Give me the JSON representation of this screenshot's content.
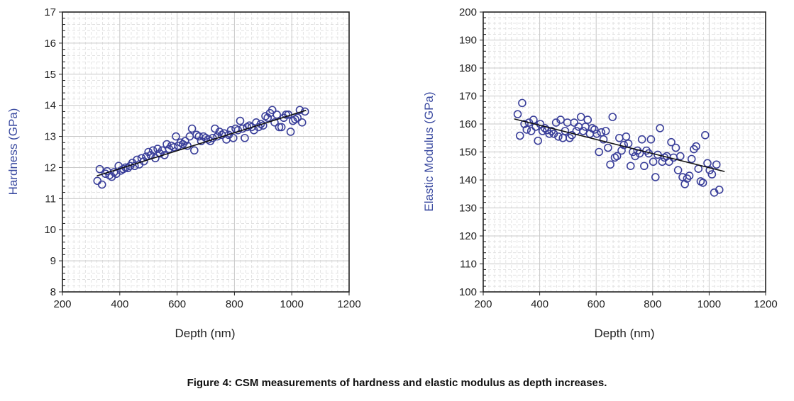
{
  "caption": "Figure 4: CSM measurements of hardness and elastic modulus as depth increases.",
  "colors": {
    "marker": "#3a3f9a",
    "ylabel": "#3a4aa0",
    "trend": "#111111",
    "major_grid": "#c8c8c8",
    "minor_grid": "#dddddd",
    "axis": "#222222"
  },
  "chart_data": [
    {
      "type": "scatter",
      "xlabel": "Depth (nm)",
      "ylabel": "Hardness (GPa)",
      "xlim": [
        200,
        1200
      ],
      "ylim": [
        8,
        17
      ],
      "xticks": [
        200,
        400,
        600,
        800,
        1000,
        1200
      ],
      "yticks": [
        8,
        9,
        10,
        11,
        12,
        13,
        14,
        15,
        16,
        17
      ],
      "grid": true,
      "marker": "open-circle",
      "trendline": {
        "x": [
          320,
          1050
        ],
        "y": [
          11.73,
          13.84
        ]
      },
      "points": [
        [
          322,
          11.57
        ],
        [
          330,
          11.95
        ],
        [
          338,
          11.45
        ],
        [
          350,
          11.8
        ],
        [
          356,
          11.88
        ],
        [
          364,
          11.75
        ],
        [
          372,
          11.7
        ],
        [
          380,
          11.85
        ],
        [
          388,
          11.8
        ],
        [
          396,
          12.05
        ],
        [
          404,
          11.9
        ],
        [
          412,
          11.95
        ],
        [
          420,
          12.0
        ],
        [
          428,
          11.98
        ],
        [
          436,
          12.05
        ],
        [
          444,
          12.15
        ],
        [
          452,
          12.05
        ],
        [
          460,
          12.25
        ],
        [
          468,
          12.1
        ],
        [
          476,
          12.3
        ],
        [
          484,
          12.2
        ],
        [
          492,
          12.35
        ],
        [
          500,
          12.5
        ],
        [
          508,
          12.4
        ],
        [
          516,
          12.55
        ],
        [
          524,
          12.3
        ],
        [
          532,
          12.6
        ],
        [
          540,
          12.45
        ],
        [
          548,
          12.55
        ],
        [
          556,
          12.4
        ],
        [
          564,
          12.75
        ],
        [
          572,
          12.6
        ],
        [
          580,
          12.7
        ],
        [
          588,
          12.65
        ],
        [
          596,
          13.0
        ],
        [
          604,
          12.7
        ],
        [
          612,
          12.8
        ],
        [
          620,
          12.75
        ],
        [
          628,
          12.85
        ],
        [
          636,
          12.7
        ],
        [
          644,
          13.0
        ],
        [
          652,
          13.25
        ],
        [
          660,
          12.55
        ],
        [
          668,
          13.05
        ],
        [
          676,
          13.0
        ],
        [
          684,
          12.85
        ],
        [
          692,
          13.0
        ],
        [
          700,
          12.95
        ],
        [
          708,
          12.9
        ],
        [
          716,
          12.85
        ],
        [
          724,
          12.95
        ],
        [
          732,
          13.25
        ],
        [
          740,
          13.0
        ],
        [
          748,
          13.15
        ],
        [
          756,
          13.05
        ],
        [
          764,
          13.1
        ],
        [
          772,
          12.9
        ],
        [
          780,
          13.05
        ],
        [
          788,
          13.2
        ],
        [
          796,
          12.95
        ],
        [
          804,
          13.25
        ],
        [
          812,
          13.2
        ],
        [
          820,
          13.5
        ],
        [
          828,
          13.25
        ],
        [
          836,
          12.95
        ],
        [
          844,
          13.3
        ],
        [
          852,
          13.35
        ],
        [
          860,
          13.3
        ],
        [
          868,
          13.2
        ],
        [
          876,
          13.45
        ],
        [
          884,
          13.3
        ],
        [
          892,
          13.4
        ],
        [
          900,
          13.35
        ],
        [
          908,
          13.65
        ],
        [
          916,
          13.6
        ],
        [
          924,
          13.75
        ],
        [
          932,
          13.85
        ],
        [
          940,
          13.45
        ],
        [
          948,
          13.7
        ],
        [
          956,
          13.3
        ],
        [
          964,
          13.3
        ],
        [
          972,
          13.6
        ],
        [
          980,
          13.7
        ],
        [
          988,
          13.7
        ],
        [
          996,
          13.15
        ],
        [
          1004,
          13.5
        ],
        [
          1012,
          13.55
        ],
        [
          1020,
          13.6
        ],
        [
          1028,
          13.85
        ],
        [
          1036,
          13.45
        ],
        [
          1046,
          13.8
        ]
      ]
    },
    {
      "type": "scatter",
      "xlabel": "Depth (nm)",
      "ylabel": "Elastic Modulus (GPa)",
      "xlim": [
        200,
        1200
      ],
      "ylim": [
        100,
        200
      ],
      "xticks": [
        200,
        400,
        600,
        800,
        1000,
        1200
      ],
      "yticks": [
        100,
        110,
        120,
        130,
        140,
        150,
        160,
        170,
        180,
        190,
        200
      ],
      "grid": true,
      "marker": "open-circle",
      "trendline": {
        "x": [
          310,
          1055
        ],
        "y": [
          161.8,
          143.0
        ]
      },
      "points": [
        [
          322,
          163.5
        ],
        [
          330,
          155.8
        ],
        [
          338,
          167.5
        ],
        [
          346,
          160.0
        ],
        [
          354,
          158.0
        ],
        [
          362,
          160.5
        ],
        [
          370,
          157.5
        ],
        [
          378,
          161.5
        ],
        [
          386,
          159.0
        ],
        [
          394,
          154.0
        ],
        [
          402,
          160.0
        ],
        [
          410,
          157.5
        ],
        [
          418,
          158.5
        ],
        [
          426,
          157.8
        ],
        [
          434,
          156.5
        ],
        [
          442,
          157.5
        ],
        [
          450,
          156.5
        ],
        [
          458,
          160.5
        ],
        [
          466,
          155.5
        ],
        [
          474,
          161.5
        ],
        [
          482,
          155.0
        ],
        [
          490,
          157.5
        ],
        [
          498,
          160.5
        ],
        [
          506,
          155.0
        ],
        [
          514,
          156.0
        ],
        [
          522,
          160.5
        ],
        [
          530,
          157.5
        ],
        [
          538,
          159.0
        ],
        [
          546,
          162.5
        ],
        [
          554,
          157.5
        ],
        [
          562,
          159.0
        ],
        [
          570,
          161.5
        ],
        [
          578,
          156.5
        ],
        [
          586,
          158.5
        ],
        [
          594,
          158.0
        ],
        [
          602,
          156.5
        ],
        [
          610,
          150.0
        ],
        [
          618,
          157.0
        ],
        [
          626,
          154.5
        ],
        [
          634,
          157.5
        ],
        [
          642,
          151.5
        ],
        [
          650,
          145.5
        ],
        [
          658,
          162.5
        ],
        [
          666,
          148.0
        ],
        [
          674,
          148.5
        ],
        [
          682,
          155.0
        ],
        [
          690,
          150.5
        ],
        [
          698,
          152.5
        ],
        [
          706,
          155.5
        ],
        [
          714,
          153.0
        ],
        [
          722,
          145.0
        ],
        [
          730,
          150.0
        ],
        [
          738,
          148.5
        ],
        [
          746,
          150.5
        ],
        [
          754,
          149.5
        ],
        [
          762,
          154.5
        ],
        [
          770,
          145.0
        ],
        [
          778,
          150.5
        ],
        [
          786,
          149.5
        ],
        [
          794,
          154.5
        ],
        [
          802,
          146.5
        ],
        [
          810,
          141.0
        ],
        [
          818,
          149.0
        ],
        [
          826,
          158.5
        ],
        [
          834,
          146.5
        ],
        [
          842,
          148.0
        ],
        [
          850,
          148.5
        ],
        [
          858,
          146.5
        ],
        [
          866,
          153.5
        ],
        [
          874,
          148.0
        ],
        [
          882,
          151.5
        ],
        [
          890,
          143.5
        ],
        [
          898,
          148.5
        ],
        [
          906,
          141.0
        ],
        [
          914,
          138.5
        ],
        [
          922,
          140.5
        ],
        [
          930,
          141.5
        ],
        [
          938,
          147.5
        ],
        [
          946,
          151.0
        ],
        [
          954,
          152.0
        ],
        [
          962,
          144.0
        ],
        [
          970,
          139.5
        ],
        [
          978,
          139.0
        ],
        [
          986,
          156.0
        ],
        [
          994,
          146.0
        ],
        [
          1002,
          143.5
        ],
        [
          1010,
          142.0
        ],
        [
          1018,
          135.5
        ],
        [
          1026,
          145.5
        ],
        [
          1036,
          136.5
        ]
      ]
    }
  ]
}
